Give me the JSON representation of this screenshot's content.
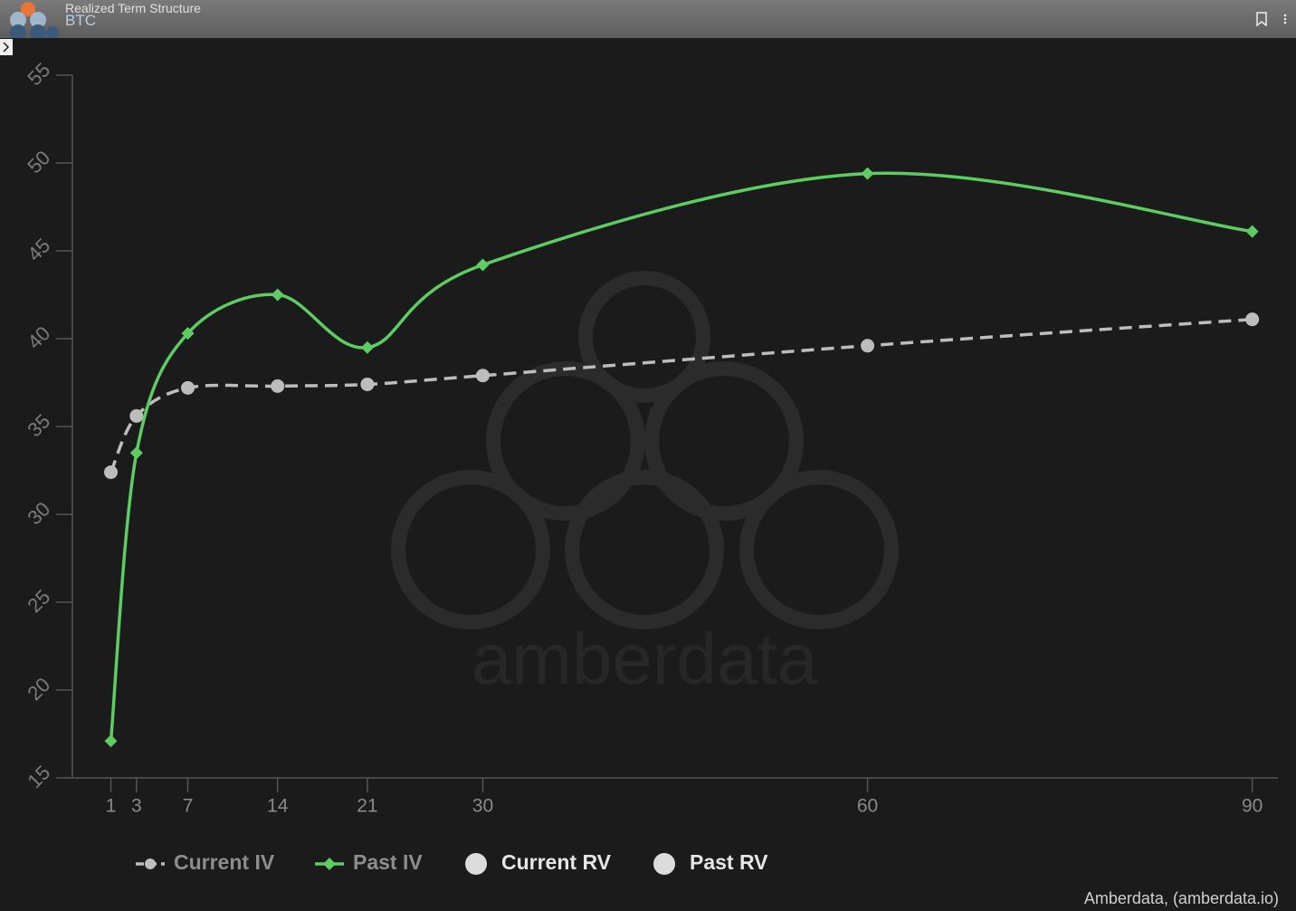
{
  "header": {
    "title": "Realized Term Structure",
    "subtitle": "BTC"
  },
  "chart_data": {
    "type": "line",
    "x": [
      1,
      3,
      7,
      14,
      21,
      30,
      60,
      90
    ],
    "series": [
      {
        "name": "Current IV",
        "color": "#bdbdbd",
        "dashed": true,
        "marker": "circle",
        "values": [
          32.4,
          35.6,
          37.2,
          37.3,
          37.4,
          37.9,
          39.6,
          41.1
        ]
      },
      {
        "name": "Past IV",
        "color": "#5ccc63",
        "dashed": false,
        "marker": "diamond",
        "values": [
          17.1,
          33.5,
          40.3,
          42.5,
          39.5,
          44.2,
          49.4,
          46.1
        ]
      },
      {
        "name": "Current RV",
        "color": "#dcdcdc",
        "dashed": false,
        "marker": "circle",
        "values": [
          null,
          null,
          null,
          null,
          null,
          null,
          null,
          null
        ]
      },
      {
        "name": "Past RV",
        "color": "#dcdcdc",
        "dashed": false,
        "marker": "circle",
        "values": [
          null,
          null,
          null,
          null,
          null,
          null,
          null,
          null
        ]
      }
    ],
    "xlim": [
      -2,
      92
    ],
    "xticks": [
      1,
      3,
      7,
      14,
      21,
      30,
      60,
      90
    ],
    "ylim": [
      15,
      55
    ],
    "yticks": [
      15,
      20,
      25,
      30,
      35,
      40,
      45,
      50,
      55
    ],
    "watermark": "amberdata",
    "credit": "Amberdata, (amberdata.io)"
  }
}
